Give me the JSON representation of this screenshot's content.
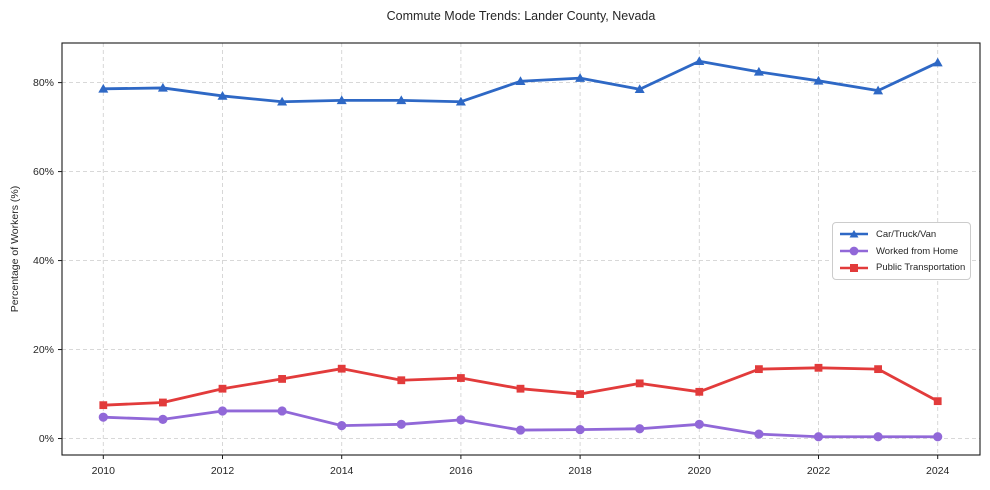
{
  "title": "Commute Mode Trends: Lander County, Nevada",
  "chart_data": {
    "type": "line",
    "x": [
      2010,
      2011,
      2012,
      2013,
      2014,
      2015,
      2016,
      2017,
      2018,
      2019,
      2020,
      2021,
      2022,
      2023,
      2024
    ],
    "series": [
      {
        "name": "Car/Truck/Van",
        "color": "#2e68c5",
        "marker": "triangle",
        "values": [
          78.6,
          78.8,
          77.0,
          75.7,
          76.0,
          76.0,
          75.7,
          80.3,
          81.0,
          78.5,
          84.8,
          82.4,
          80.4,
          78.2,
          84.5
        ]
      },
      {
        "name": "Worked from Home",
        "color": "#9168d8",
        "marker": "circle",
        "values": [
          4.8,
          4.3,
          6.2,
          6.2,
          2.9,
          3.2,
          4.2,
          1.9,
          2.0,
          2.2,
          3.2,
          1.0,
          0.4,
          0.4,
          0.4
        ]
      },
      {
        "name": "Public Transportation",
        "color": "#e23b3b",
        "marker": "square",
        "values": [
          7.5,
          8.1,
          11.2,
          13.4,
          15.7,
          13.1,
          13.6,
          11.2,
          10.0,
          12.4,
          10.5,
          15.6,
          15.9,
          15.6,
          8.4
        ]
      }
    ],
    "title": "Commute Mode Trends: Lander County, Nevada",
    "xlabel": "",
    "ylabel": "Percentage of Workers (%)",
    "ylim": [
      -3.7,
      88.9
    ],
    "yticks": [
      0,
      20,
      40,
      60,
      80
    ],
    "ytick_labels": [
      "0%",
      "20%",
      "40%",
      "60%",
      "80%"
    ],
    "xticks": [
      2010,
      2012,
      2014,
      2016,
      2018,
      2020,
      2022,
      2024
    ],
    "xtick_labels": [
      "2010",
      "2012",
      "2014",
      "2016",
      "2018",
      "2020",
      "2022",
      "2024"
    ],
    "grid": true,
    "grid_style": "dashed",
    "legend_position": "center-right",
    "colors": {
      "grid": "#d3d3d3",
      "spine": "#1a1a1a",
      "background": "#ffffff"
    }
  }
}
